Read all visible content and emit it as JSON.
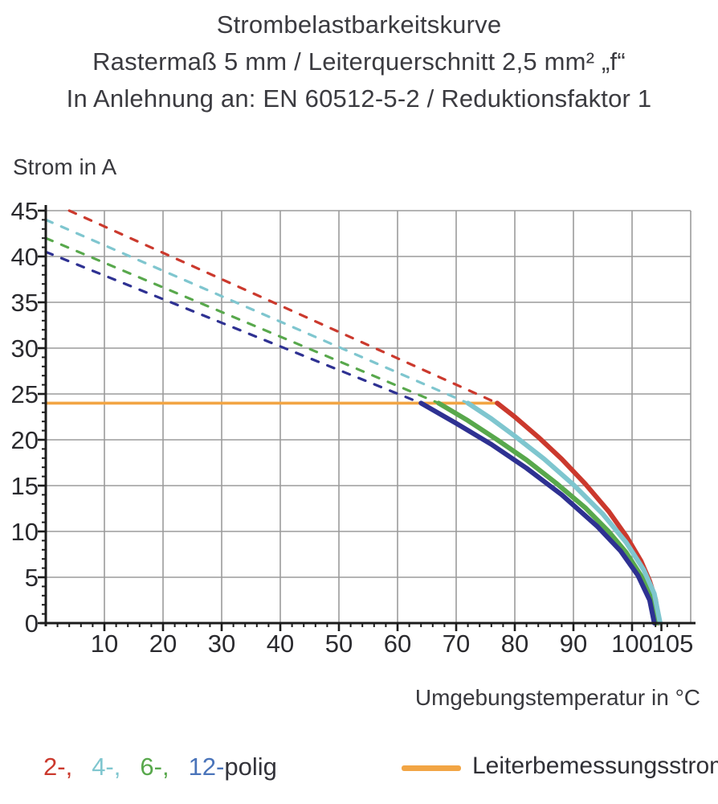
{
  "title": {
    "line1": "Strombelastbarkeitskurve",
    "line2": "Rastermaß 5 mm / Leiterquerschnitt 2,5 mm² „f“",
    "line3": "In Anlehnung an: EN 60512-5-2 / Reduktionsfaktor 1"
  },
  "chart_data": {
    "type": "line",
    "ylabel": "Strom in A",
    "xlabel": "Umgebungstemperatur in °C",
    "xlim": [
      0,
      110
    ],
    "ylim": [
      0,
      45
    ],
    "xticks": [
      10,
      20,
      30,
      40,
      50,
      60,
      70,
      80,
      90,
      100,
      105
    ],
    "yticks": [
      0,
      5,
      10,
      15,
      20,
      25,
      30,
      35,
      40,
      45
    ],
    "x_minor_step": 2,
    "y_minor_step": 1,
    "grid": {
      "color": "#9b9b9b",
      "x_lines": [
        10,
        20,
        30,
        40,
        50,
        60,
        70,
        80,
        90,
        100,
        110
      ],
      "y_lines": [
        5,
        10,
        15,
        20,
        25,
        30,
        35,
        40,
        45
      ]
    },
    "axis_color": "#1c1c1c",
    "tick_label_color": "#2a2a2e",
    "rated_line": {
      "name": "Leiterbemessungsstrom",
      "color": "#f2a544",
      "value": 24,
      "points": [
        [
          0,
          24
        ],
        [
          77,
          24
        ]
      ]
    },
    "series": [
      {
        "name": "2-polig",
        "color": "#cb392d",
        "dashed": [
          [
            4,
            45
          ],
          [
            77,
            24
          ]
        ],
        "solid": [
          [
            77,
            24
          ],
          [
            80,
            22.5
          ],
          [
            84,
            20.3
          ],
          [
            88,
            17.9
          ],
          [
            92,
            15.2
          ],
          [
            96,
            12.2
          ],
          [
            99,
            9.5
          ],
          [
            101.5,
            6.8
          ],
          [
            103,
            4.6
          ],
          [
            104,
            2.6
          ],
          [
            104.6,
            0
          ]
        ]
      },
      {
        "name": "6-polig",
        "color": "#58a84c",
        "dashed": [
          [
            0,
            42
          ],
          [
            67,
            24
          ]
        ],
        "solid": [
          [
            67,
            24
          ],
          [
            72,
            22.1
          ],
          [
            77,
            20.0
          ],
          [
            82,
            17.8
          ],
          [
            87,
            15.3
          ],
          [
            92,
            12.6
          ],
          [
            96,
            10.0
          ],
          [
            99,
            7.7
          ],
          [
            101.5,
            5.2
          ],
          [
            103,
            3.3
          ],
          [
            104.2,
            0
          ]
        ]
      },
      {
        "name": "4-polig",
        "color": "#7fc6cf",
        "dashed": [
          [
            0,
            44
          ],
          [
            72,
            24
          ]
        ],
        "solid": [
          [
            72,
            24
          ],
          [
            76,
            22.3
          ],
          [
            80,
            20.4
          ],
          [
            85,
            17.9
          ],
          [
            90,
            15.1
          ],
          [
            95,
            11.9
          ],
          [
            99,
            8.8
          ],
          [
            102,
            5.8
          ],
          [
            103.8,
            3.2
          ],
          [
            104.8,
            0
          ]
        ]
      },
      {
        "name": "12-polig",
        "color": "#2e3192",
        "dashed": [
          [
            0,
            40.5
          ],
          [
            64,
            24
          ]
        ],
        "solid": [
          [
            64,
            24
          ],
          [
            70,
            21.8
          ],
          [
            76,
            19.5
          ],
          [
            82,
            16.9
          ],
          [
            88,
            14.0
          ],
          [
            94,
            10.6
          ],
          [
            98,
            7.9
          ],
          [
            101,
            5.2
          ],
          [
            103,
            2.5
          ],
          [
            103.8,
            0
          ]
        ]
      }
    ]
  },
  "legend": {
    "poles": [
      {
        "label": "2-,",
        "color": "#cb392d"
      },
      {
        "label": "4-,",
        "color": "#7fc6cf"
      },
      {
        "label": "6-,",
        "color": "#58a84c"
      },
      {
        "label": "12-",
        "color": "#4a74ba"
      }
    ],
    "suffix": "polig",
    "rated": {
      "label": "Leiterbemessungsstrom",
      "color": "#f2a544"
    }
  }
}
